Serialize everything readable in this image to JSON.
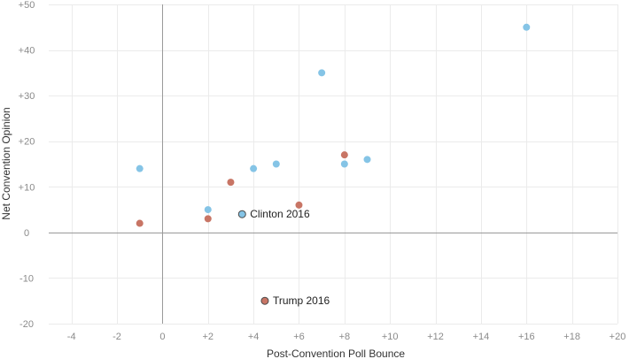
{
  "chart_data": {
    "type": "scatter",
    "title": "",
    "xlabel": "Post-Convention Poll Bounce",
    "ylabel": "Net Convention Opinion",
    "xlim": [
      -5,
      20
    ],
    "ylim": [
      -20,
      50
    ],
    "x_ticks": [
      -4,
      -2,
      0,
      2,
      4,
      6,
      8,
      10,
      12,
      14,
      16,
      18,
      20
    ],
    "x_tick_labels": [
      "-4",
      "-2",
      "0",
      "+2",
      "+4",
      "+6",
      "+8",
      "+10",
      "+12",
      "+14",
      "+16",
      "+18",
      "+20"
    ],
    "y_ticks": [
      -20,
      -10,
      0,
      10,
      20,
      30,
      40,
      50
    ],
    "y_tick_labels": [
      "-20",
      "-10",
      "0",
      "+10",
      "+20",
      "+30",
      "+40",
      "+50"
    ],
    "grid": true,
    "legend": "none",
    "series": [
      {
        "color": "#85c4e6",
        "points": [
          {
            "x": -1,
            "y": 14
          },
          {
            "x": 2,
            "y": 5
          },
          {
            "x": 4,
            "y": 14
          },
          {
            "x": 5,
            "y": 15
          },
          {
            "x": 7,
            "y": 35
          },
          {
            "x": 8,
            "y": 15
          },
          {
            "x": 9,
            "y": 16
          },
          {
            "x": 16,
            "y": 45
          },
          {
            "x": 3.5,
            "y": 4,
            "label": "Clinton 2016",
            "highlight": true
          }
        ]
      },
      {
        "color": "#c87565",
        "points": [
          {
            "x": -1,
            "y": 2
          },
          {
            "x": 2,
            "y": 3
          },
          {
            "x": 3,
            "y": 11
          },
          {
            "x": 6,
            "y": 6
          },
          {
            "x": 8,
            "y": 17
          },
          {
            "x": 4.5,
            "y": -15,
            "label": "Trump 2016",
            "highlight": true
          }
        ]
      }
    ]
  }
}
